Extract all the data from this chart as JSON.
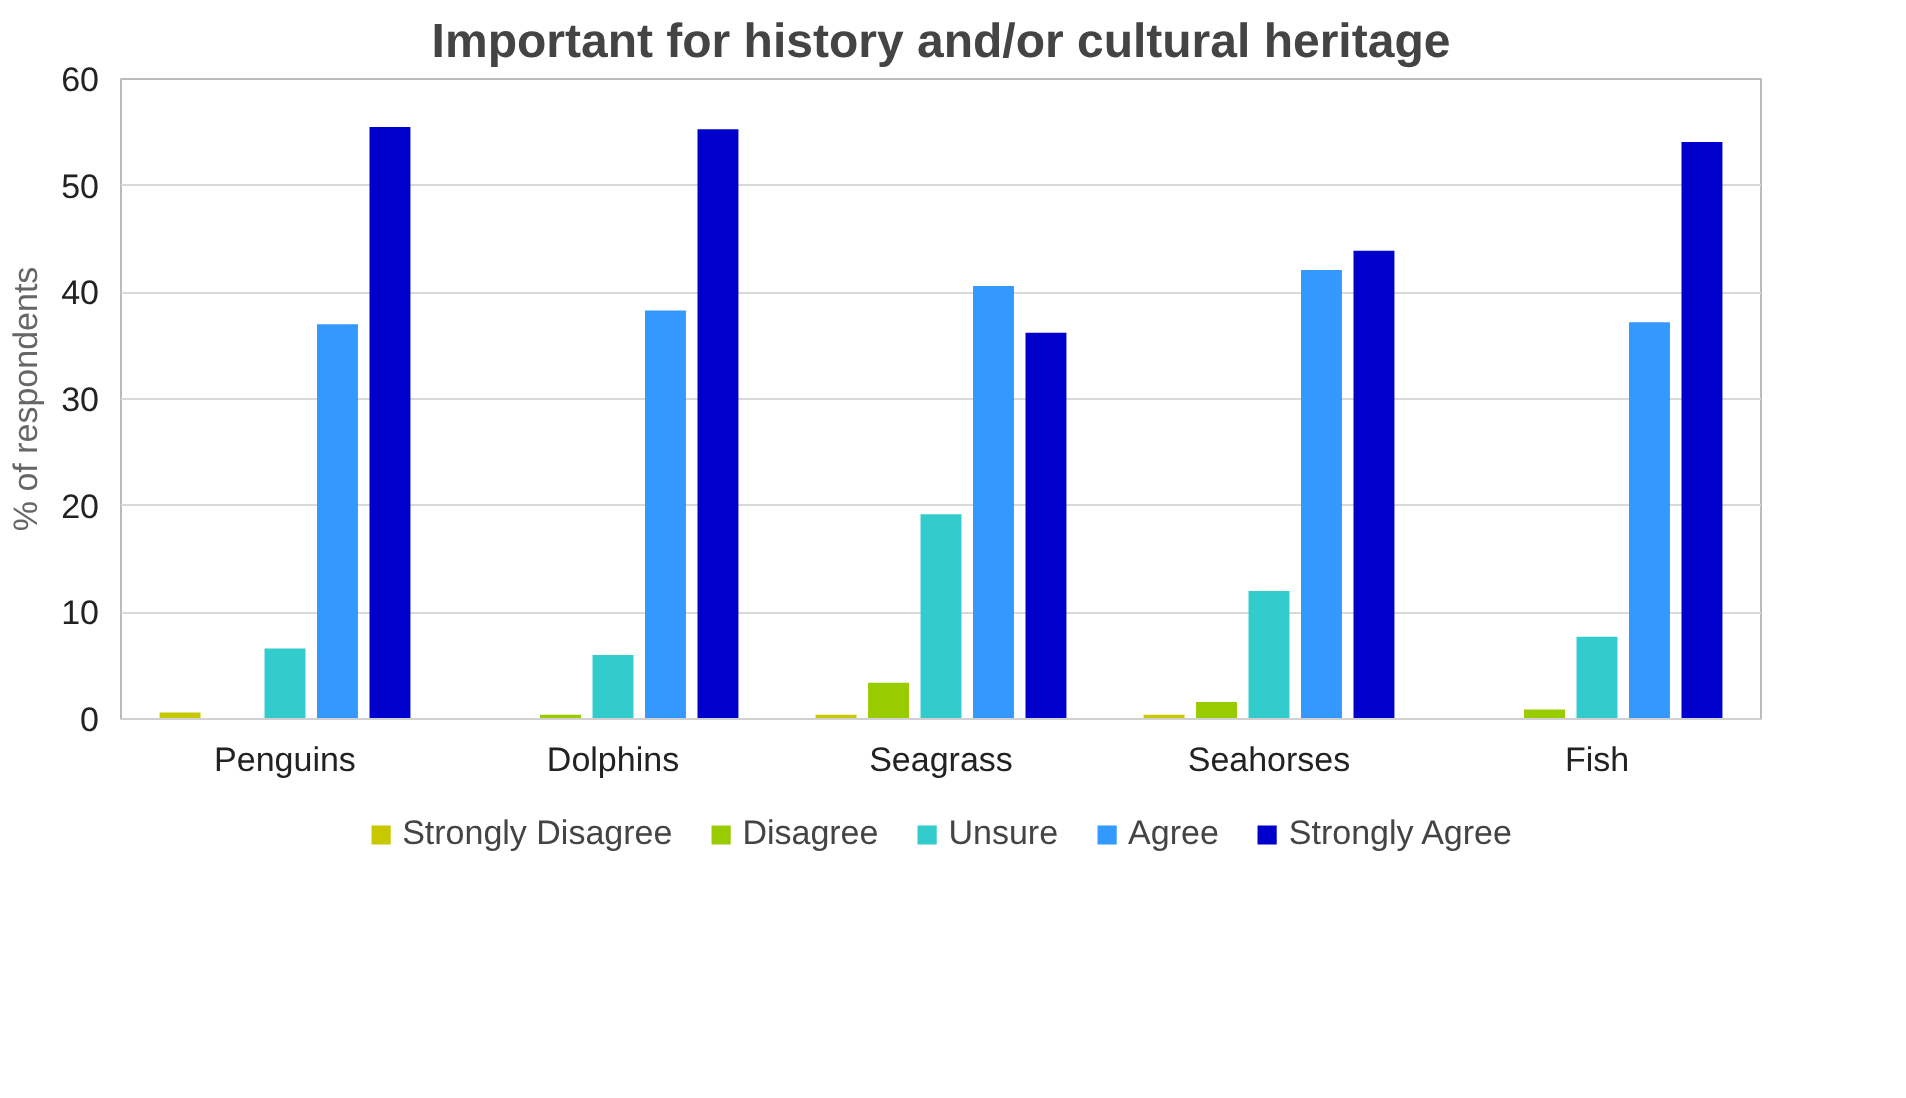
{
  "chart_data": {
    "type": "bar",
    "title": "Important for history and/or cultural heritage",
    "ylabel": "% of respondents",
    "categories": [
      "Penguins",
      "Dolphins",
      "Seagrass",
      "Seahorses",
      "Fish"
    ],
    "series": [
      {
        "name": "Strongly Disagree",
        "color": "#c8c800",
        "values": [
          0.6,
          0,
          0.4,
          0.4,
          0
        ]
      },
      {
        "name": "Disagree",
        "color": "#99cc00",
        "values": [
          0,
          0.4,
          3.4,
          1.6,
          0.9
        ]
      },
      {
        "name": "Unsure",
        "color": "#33cccc",
        "values": [
          6.6,
          6.0,
          19.2,
          12.0,
          7.7
        ]
      },
      {
        "name": "Agree",
        "color": "#3399ff",
        "values": [
          37.0,
          38.3,
          40.6,
          42.1,
          37.2
        ]
      },
      {
        "name": "Strongly Agree",
        "color": "#0000cc",
        "values": [
          55.5,
          55.3,
          36.2,
          43.9,
          54.1
        ]
      }
    ],
    "ylim": [
      0,
      60
    ],
    "yticks": [
      0,
      10,
      20,
      30,
      40,
      50,
      60
    ],
    "grid": "y",
    "legend": "bottom"
  }
}
